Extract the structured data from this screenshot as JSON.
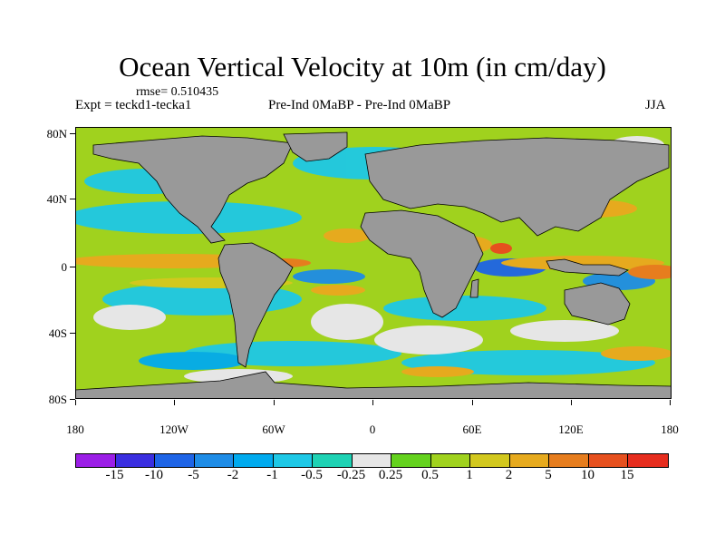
{
  "figure": {
    "title": "Ocean Vertical Velocity at 10m (in cm/day)",
    "rmse": "rmse= 0.510435",
    "expt": "Expt = teckd1-tecka1",
    "comparison": "Pre-Ind 0MaBP - Pre-Ind 0MaBP",
    "season": "JJA"
  },
  "axes": {
    "lat_labels": [
      "80N",
      "40N",
      "0",
      "40S",
      "80S"
    ],
    "lon_labels": [
      "180",
      "120W",
      "60W",
      "0",
      "60E",
      "120E",
      "180"
    ]
  },
  "colorbar": {
    "labels": [
      "-15",
      "-10",
      "-5",
      "-2",
      "-1",
      "-0.5",
      "-0.25",
      "0.25",
      "0.5",
      "1",
      "2",
      "5",
      "10",
      "15"
    ],
    "colors": [
      "#9b1ee6",
      "#3a2ee0",
      "#1e64e6",
      "#1e8ce6",
      "#00aaee",
      "#1ec8e6",
      "#1ed2b4",
      "#e6e6e6",
      "#64d21e",
      "#a0d21e",
      "#d2c81e",
      "#e6aa1e",
      "#e67d1e",
      "#e6501e",
      "#e62d1e"
    ]
  },
  "colors": {
    "land": "#999999",
    "background": "#ffffff"
  }
}
